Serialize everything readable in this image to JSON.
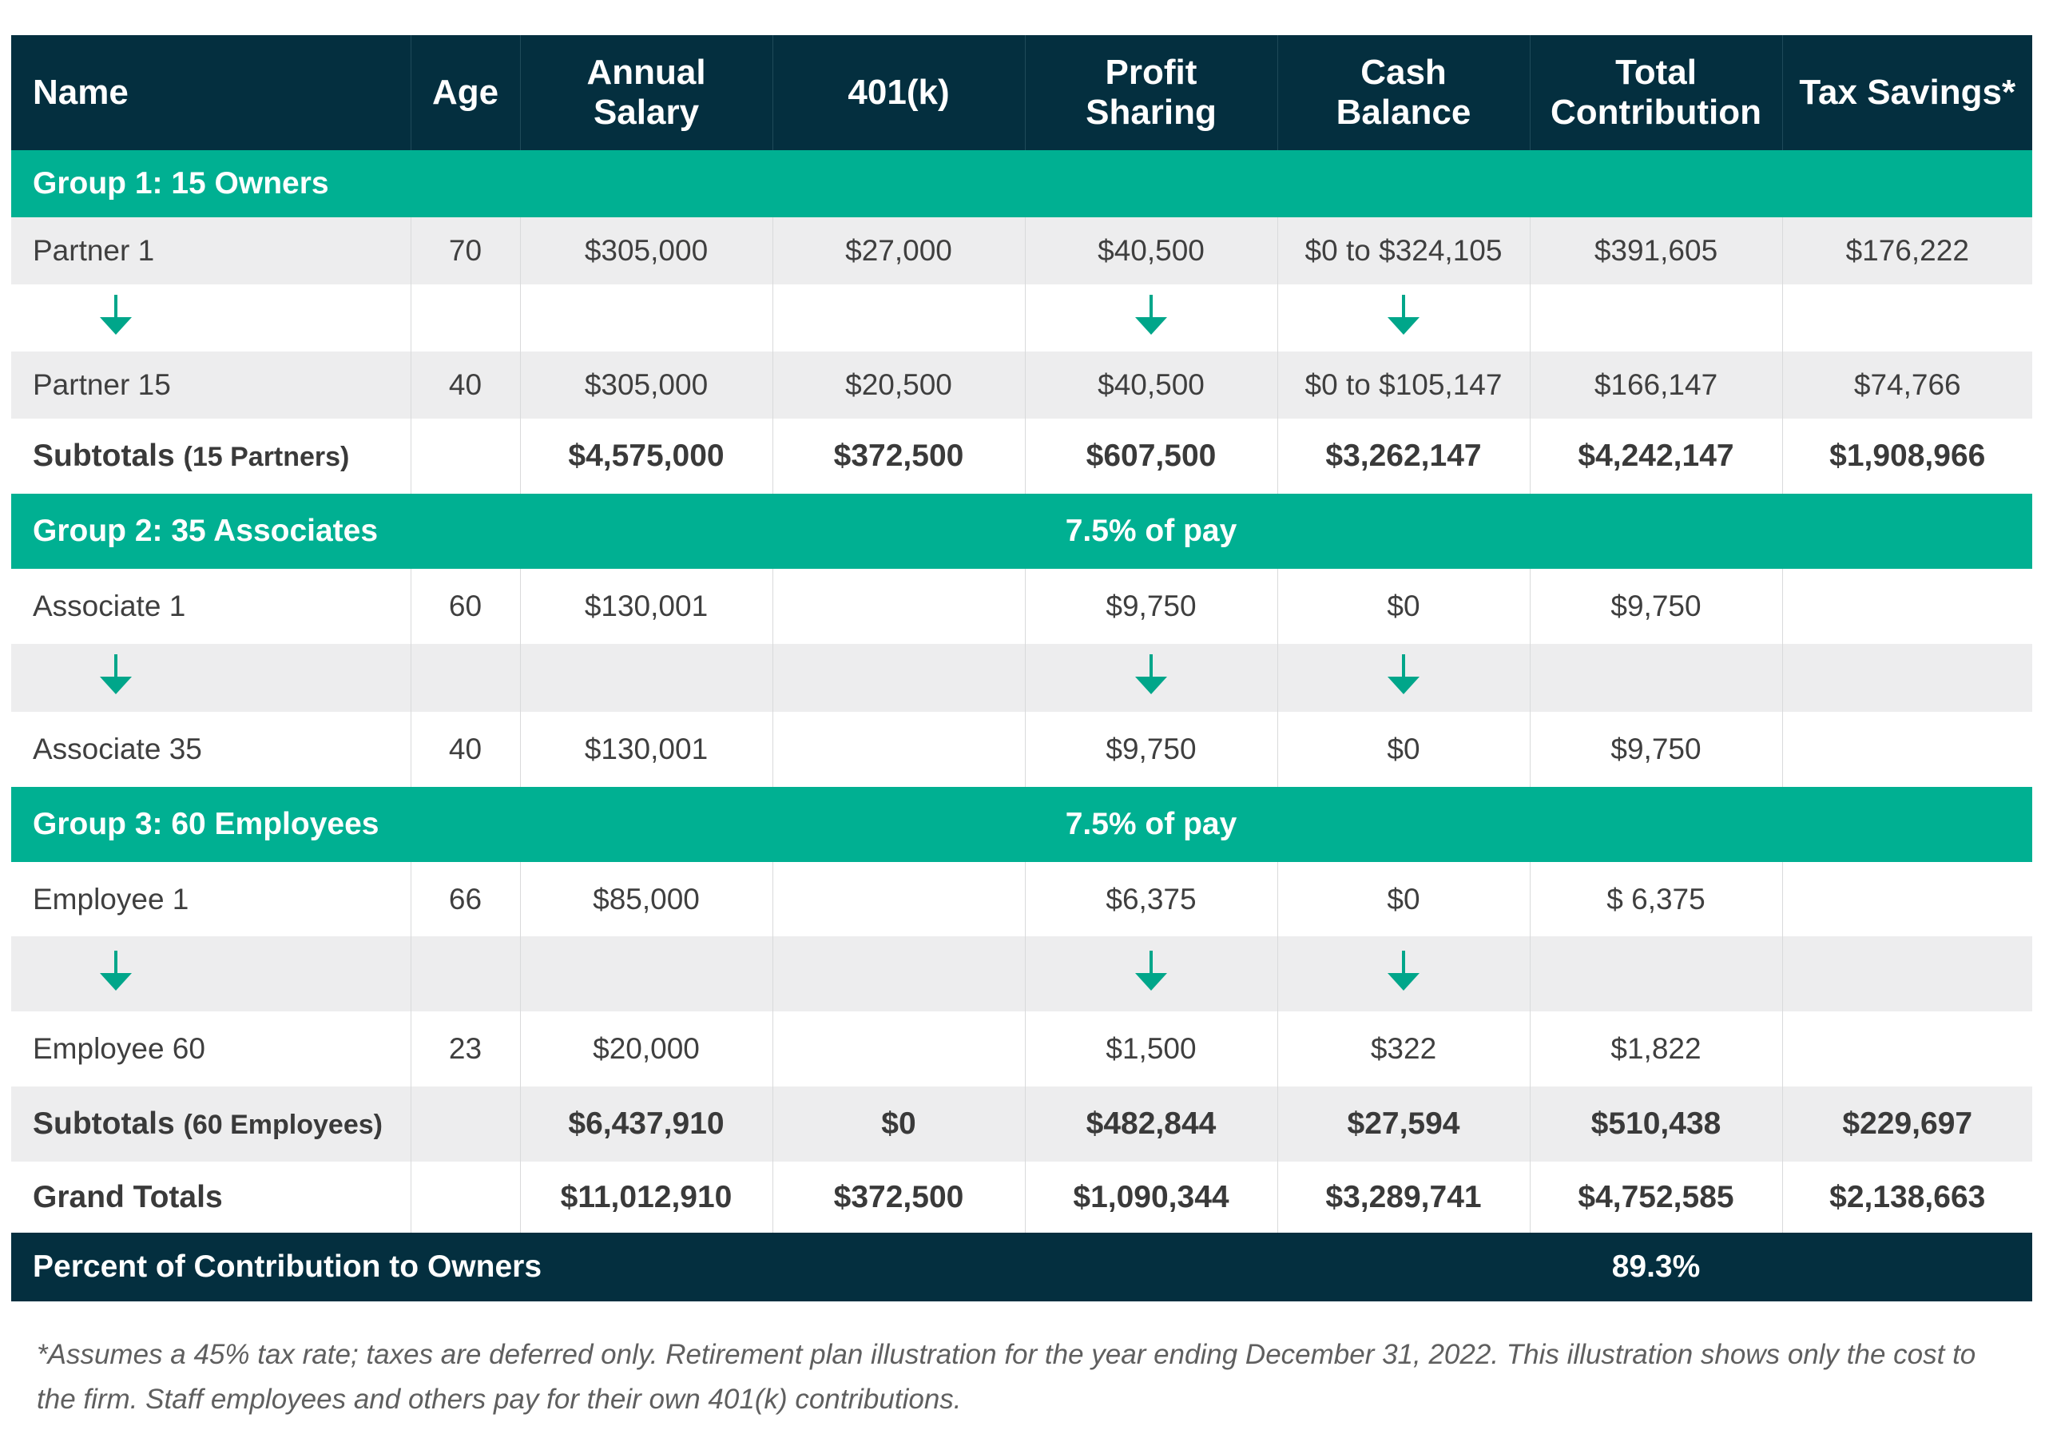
{
  "colors": {
    "header_bg": "#042f3f",
    "group_bg": "#00b092",
    "row_shade": "#ededee",
    "arrow": "#00a68a"
  },
  "icons": {
    "arrow": "arrow-down-icon"
  },
  "columns": [
    "Name",
    "Age",
    "Annual Salary",
    "401(k)",
    "Profit Sharing",
    "Cash Balance",
    "Total Contribution",
    "Tax Savings*"
  ],
  "group1": {
    "label": "Group 1: 15 Owners",
    "first": [
      "Partner 1",
      "70",
      "$305,000",
      "$27,000",
      "$40,500",
      "$0 to $324,105",
      "$391,605",
      "$176,222"
    ],
    "last": [
      "Partner 15",
      "40",
      "$305,000",
      "$20,500",
      "$40,500",
      "$0 to $105,147",
      "$166,147",
      "$74,766"
    ],
    "subtotal_label": "Subtotals",
    "subtotal_note": "(15 Partners)",
    "subtotal": [
      "$4,575,000",
      "$372,500",
      "$607,500",
      "$3,262,147",
      "$4,242,147",
      "$1,908,966"
    ]
  },
  "group2": {
    "label": "Group 2: 35 Associates",
    "rate": "7.5% of pay",
    "first": [
      "Associate 1",
      "60",
      "$130,001",
      "",
      "$9,750",
      "$0",
      "$9,750",
      ""
    ],
    "last": [
      "Associate 35",
      "40",
      "$130,001",
      "",
      "$9,750",
      "$0",
      "$9,750",
      ""
    ]
  },
  "group3": {
    "label": "Group 3: 60 Employees",
    "rate": "7.5% of pay",
    "first": [
      "Employee 1",
      "66",
      "$85,000",
      "",
      "$6,375",
      "$0",
      "$ 6,375",
      ""
    ],
    "last": [
      "Employee 60",
      "23",
      "$20,000",
      "",
      "$1,500",
      "$322",
      "$1,822",
      ""
    ],
    "subtotal_label": "Subtotals",
    "subtotal_note": "(60 Employees)",
    "subtotal": [
      "$6,437,910",
      "$0",
      "$482,844",
      "$27,594",
      "$510,438",
      "$229,697"
    ]
  },
  "grand": {
    "label": "Grand Totals",
    "values": [
      "$11,012,910",
      "$372,500",
      "$1,090,344",
      "$3,289,741",
      "$4,752,585",
      "$2,138,663"
    ]
  },
  "footer": {
    "label": "Percent of Contribution to Owners",
    "value": "89.3%"
  },
  "footnote": "*Assumes a 45% tax rate; taxes are deferred only. Retirement plan illustration for the year ending December 31, 2022. This illustration shows only the cost to the firm. Staff employees and others pay for their own 401(k) contributions."
}
